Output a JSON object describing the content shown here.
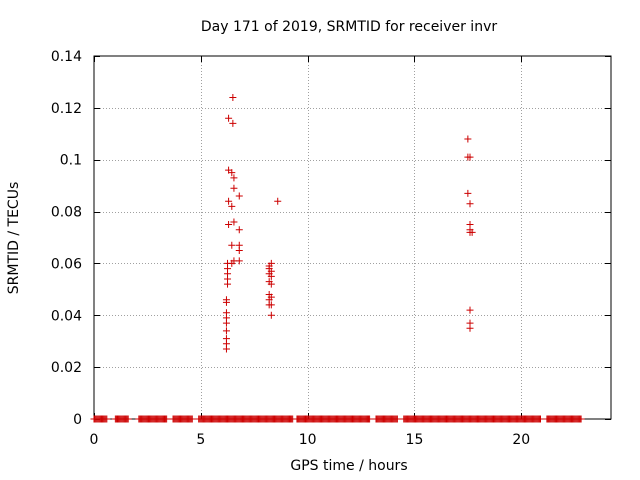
{
  "chart_data": {
    "type": "scatter",
    "title": "Day 171 of 2019, SRMTID for receiver invr",
    "xlabel": "GPS time / hours",
    "ylabel": "SRMTID / TECUs",
    "xlim": [
      0,
      24.2
    ],
    "ylim": [
      0,
      0.14
    ],
    "x_ticks": [
      0,
      5,
      10,
      15,
      20
    ],
    "x_tick_labels": [
      "0",
      "5",
      "10",
      "15",
      "20"
    ],
    "y_ticks": [
      0,
      0.02,
      0.04,
      0.06,
      0.08,
      0.1,
      0.12,
      0.14
    ],
    "y_tick_labels": [
      "0",
      "0.02",
      "0.04",
      "0.06",
      "0.08",
      "0.1",
      "0.12",
      "0.14"
    ],
    "grid": true,
    "marker": "+",
    "marker_color": "#cc0000",
    "zero_series": {
      "y": 0,
      "x_ranges": [
        [
          0.0,
          0.6
        ],
        [
          1.0,
          1.6
        ],
        [
          2.1,
          3.4
        ],
        [
          3.7,
          4.6
        ],
        [
          4.9,
          9.3
        ],
        [
          9.5,
          12.9
        ],
        [
          13.2,
          14.2
        ],
        [
          14.5,
          20.9
        ],
        [
          21.2,
          22.8
        ]
      ],
      "step": 0.05
    },
    "points": [
      {
        "x": 6.2,
        "y": 0.027
      },
      {
        "x": 6.2,
        "y": 0.029
      },
      {
        "x": 6.2,
        "y": 0.031
      },
      {
        "x": 6.2,
        "y": 0.034
      },
      {
        "x": 6.2,
        "y": 0.037
      },
      {
        "x": 6.2,
        "y": 0.039
      },
      {
        "x": 6.2,
        "y": 0.041
      },
      {
        "x": 6.2,
        "y": 0.045
      },
      {
        "x": 6.2,
        "y": 0.046
      },
      {
        "x": 6.25,
        "y": 0.052
      },
      {
        "x": 6.25,
        "y": 0.054
      },
      {
        "x": 6.25,
        "y": 0.056
      },
      {
        "x": 6.25,
        "y": 0.058
      },
      {
        "x": 6.25,
        "y": 0.06
      },
      {
        "x": 6.3,
        "y": 0.075
      },
      {
        "x": 6.3,
        "y": 0.084
      },
      {
        "x": 6.3,
        "y": 0.096
      },
      {
        "x": 6.3,
        "y": 0.116
      },
      {
        "x": 6.45,
        "y": 0.06
      },
      {
        "x": 6.45,
        "y": 0.067
      },
      {
        "x": 6.45,
        "y": 0.082
      },
      {
        "x": 6.45,
        "y": 0.095
      },
      {
        "x": 6.5,
        "y": 0.114
      },
      {
        "x": 6.5,
        "y": 0.124
      },
      {
        "x": 6.55,
        "y": 0.061
      },
      {
        "x": 6.55,
        "y": 0.076
      },
      {
        "x": 6.55,
        "y": 0.089
      },
      {
        "x": 6.55,
        "y": 0.093
      },
      {
        "x": 6.8,
        "y": 0.061
      },
      {
        "x": 6.8,
        "y": 0.065
      },
      {
        "x": 6.8,
        "y": 0.067
      },
      {
        "x": 6.8,
        "y": 0.073
      },
      {
        "x": 6.8,
        "y": 0.086
      },
      {
        "x": 8.2,
        "y": 0.044
      },
      {
        "x": 8.2,
        "y": 0.046
      },
      {
        "x": 8.2,
        "y": 0.048
      },
      {
        "x": 8.2,
        "y": 0.053
      },
      {
        "x": 8.2,
        "y": 0.056
      },
      {
        "x": 8.2,
        "y": 0.058
      },
      {
        "x": 8.2,
        "y": 0.059
      },
      {
        "x": 8.3,
        "y": 0.04
      },
      {
        "x": 8.3,
        "y": 0.044
      },
      {
        "x": 8.3,
        "y": 0.047
      },
      {
        "x": 8.3,
        "y": 0.052
      },
      {
        "x": 8.3,
        "y": 0.055
      },
      {
        "x": 8.3,
        "y": 0.057
      },
      {
        "x": 8.3,
        "y": 0.06
      },
      {
        "x": 8.6,
        "y": 0.084
      },
      {
        "x": 17.5,
        "y": 0.087
      },
      {
        "x": 17.5,
        "y": 0.101
      },
      {
        "x": 17.5,
        "y": 0.108
      },
      {
        "x": 17.6,
        "y": 0.035
      },
      {
        "x": 17.6,
        "y": 0.037
      },
      {
        "x": 17.6,
        "y": 0.042
      },
      {
        "x": 17.6,
        "y": 0.072
      },
      {
        "x": 17.6,
        "y": 0.073
      },
      {
        "x": 17.6,
        "y": 0.075
      },
      {
        "x": 17.6,
        "y": 0.083
      },
      {
        "x": 17.6,
        "y": 0.101
      },
      {
        "x": 17.7,
        "y": 0.072
      }
    ]
  }
}
